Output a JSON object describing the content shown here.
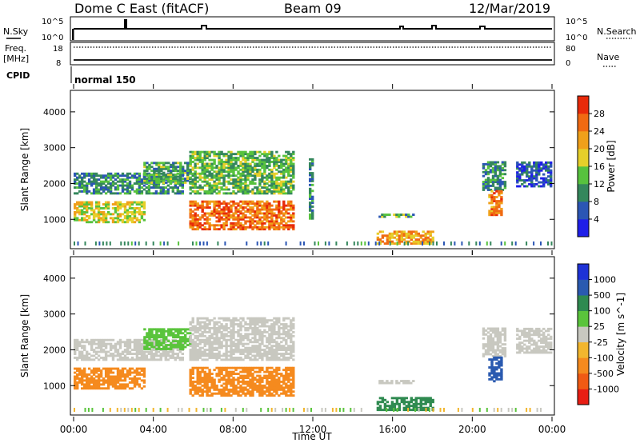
{
  "header": {
    "station": "Dome C East (fitACF)",
    "beam": "Beam 09",
    "date": "12/Mar/2019"
  },
  "top_panels": {
    "nsky_label": "N.Sky",
    "nsky_tick_top": "10^5",
    "nsky_tick_bottom": "10^0",
    "nsearch_label": "N.Search",
    "nsearch_tick_top": "10^5",
    "nsearch_tick_bottom": "10^0",
    "freq_label": "Freq.",
    "freq_unit": "[MHz]",
    "freq_tick_top": "18",
    "freq_tick_bottom": "8",
    "nave_label": "Nave",
    "nave_tick_top": "80",
    "nave_tick_bottom": "0",
    "cpid_label": "CPID",
    "cpid_value": "normal 150"
  },
  "colors": {
    "power": [
      "#1f1fe8",
      "#2b56b4",
      "#34875c",
      "#57c23e",
      "#e6cf2a",
      "#f0a01a",
      "#f06a12",
      "#e82a0a"
    ],
    "velocity": [
      "#e81e14",
      "#f05a14",
      "#f58a1e",
      "#f2b62e",
      "#c8c8c0",
      "#5ac43c",
      "#2f8a50",
      "#2a5ab0",
      "#1e32d6"
    ]
  },
  "chart_data": [
    {
      "type": "heatmap",
      "name": "power",
      "ylabel": "Slant Range [km]",
      "yticks": [
        "1000",
        "2000",
        "3000",
        "4000"
      ],
      "ylim": [
        180,
        4600
      ],
      "xticks": [
        "00:00",
        "04:00",
        "08:00",
        "12:00",
        "16:00",
        "20:00",
        "00:00"
      ],
      "colorbar_label": "Power [dB]",
      "colorbar_ticks": [
        "4",
        "8",
        "12",
        "16",
        "20",
        "24",
        "28"
      ],
      "colorbar_range": [
        0,
        32
      ],
      "blocks": [
        {
          "t0": 0.0,
          "t1": 5.5,
          "r0": 1700,
          "r1": 2300,
          "v": 10
        },
        {
          "t0": 0.0,
          "t1": 3.5,
          "r0": 900,
          "r1": 1500,
          "v": 18
        },
        {
          "t0": 3.5,
          "t1": 5.8,
          "r0": 2000,
          "r1": 2600,
          "v": 12
        },
        {
          "t0": 5.8,
          "t1": 11.0,
          "r0": 1700,
          "r1": 2900,
          "v": 13
        },
        {
          "t0": 5.8,
          "t1": 11.0,
          "r0": 700,
          "r1": 1500,
          "v": 26
        },
        {
          "t0": 11.8,
          "t1": 12.0,
          "r0": 1000,
          "r1": 2700,
          "v": 10
        },
        {
          "t0": 15.3,
          "t1": 17.0,
          "r0": 1050,
          "r1": 1150,
          "v": 12
        },
        {
          "t0": 15.2,
          "t1": 18.0,
          "r0": 300,
          "r1": 650,
          "v": 22
        },
        {
          "t0": 20.5,
          "t1": 21.7,
          "r0": 1800,
          "r1": 2600,
          "v": 10
        },
        {
          "t0": 20.8,
          "t1": 21.5,
          "r0": 1100,
          "r1": 1800,
          "v": 24
        },
        {
          "t0": 22.2,
          "t1": 24.0,
          "r0": 1900,
          "r1": 2600,
          "v": 6
        }
      ]
    },
    {
      "type": "heatmap",
      "name": "velocity",
      "ylabel": "Slant Range [km]",
      "yticks": [
        "1000",
        "2000",
        "3000",
        "4000"
      ],
      "ylim": [
        180,
        4600
      ],
      "xticks": [
        "00:00",
        "04:00",
        "08:00",
        "12:00",
        "16:00",
        "20:00",
        "00:00"
      ],
      "xlabel": "Time UT",
      "colorbar_label": "Velocity [m s^-1]",
      "colorbar_ticks": [
        "-1000",
        "-500",
        "-100",
        "-25",
        "25",
        "100",
        "500",
        "1000"
      ],
      "colorbar_range": [
        -2000,
        2000
      ],
      "blocks": [
        {
          "t0": 0.0,
          "t1": 5.5,
          "r0": 1700,
          "r1": 2300,
          "v": 0
        },
        {
          "t0": 0.0,
          "t1": 3.5,
          "r0": 900,
          "r1": 1500,
          "v": -300
        },
        {
          "t0": 3.5,
          "t1": 5.8,
          "r0": 2000,
          "r1": 2600,
          "v": 60
        },
        {
          "t0": 5.8,
          "t1": 11.0,
          "r0": 1700,
          "r1": 2900,
          "v": 0
        },
        {
          "t0": 5.8,
          "t1": 11.0,
          "r0": 700,
          "r1": 1500,
          "v": -300
        },
        {
          "t0": 15.3,
          "t1": 17.0,
          "r0": 1050,
          "r1": 1150,
          "v": 0
        },
        {
          "t0": 15.2,
          "t1": 18.0,
          "r0": 300,
          "r1": 650,
          "v": 200
        },
        {
          "t0": 20.5,
          "t1": 21.7,
          "r0": 1800,
          "r1": 2600,
          "v": 0
        },
        {
          "t0": 20.8,
          "t1": 21.5,
          "r0": 1100,
          "r1": 1800,
          "v": 600
        },
        {
          "t0": 22.2,
          "t1": 24.0,
          "r0": 1900,
          "r1": 2600,
          "v": 0
        }
      ]
    }
  ]
}
